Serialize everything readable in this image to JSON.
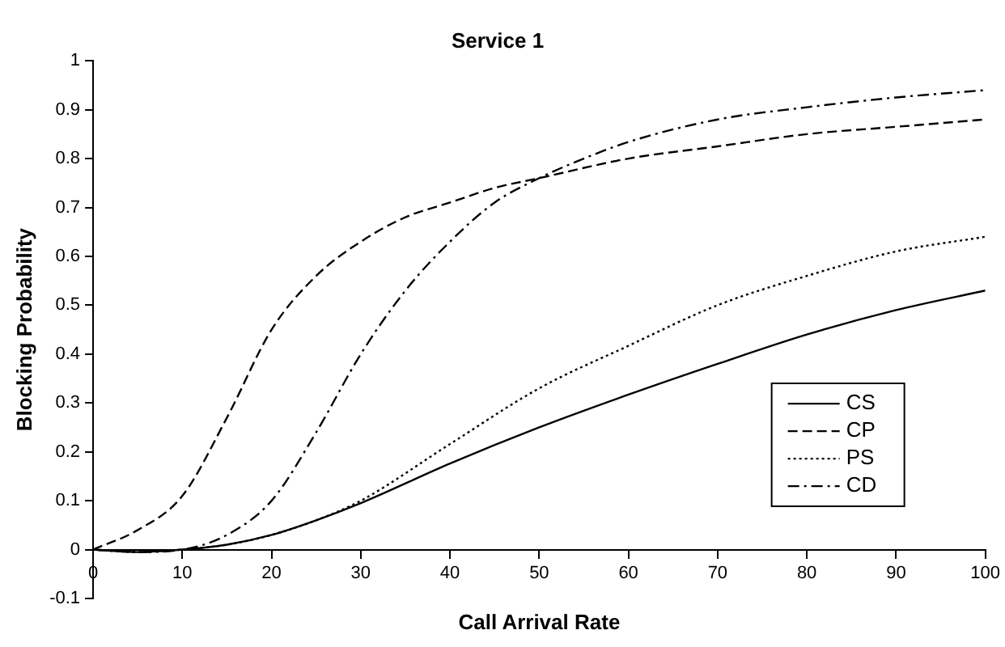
{
  "chart_data": {
    "type": "line",
    "title": "Service 1",
    "xlabel": "Call Arrival Rate",
    "ylabel": "Blocking Probability",
    "xlim": [
      0,
      100
    ],
    "xticks": [
      0,
      10,
      20,
      30,
      40,
      50,
      60,
      70,
      80,
      90,
      100
    ],
    "ylim": [
      -0.1,
      1
    ],
    "yticks": [
      -0.1,
      0,
      0.1,
      0.2,
      0.3,
      0.4,
      0.5,
      0.6,
      0.7,
      0.8,
      0.9,
      1
    ],
    "grid": false,
    "legend": "right",
    "marker": "none",
    "series": [
      {
        "name": "CS",
        "color": "#000000",
        "line_style": "solid",
        "x": [
          0,
          5,
          10,
          15,
          20,
          25,
          30,
          40,
          50,
          60,
          70,
          80,
          90,
          100
        ],
        "values": [
          0,
          -0.005,
          0,
          0.01,
          0.03,
          0.06,
          0.095,
          0.176,
          0.25,
          0.317,
          0.38,
          0.44,
          0.49,
          0.53
        ]
      },
      {
        "name": "CP",
        "color": "#000000",
        "line_style": "dashed",
        "x": [
          0,
          5,
          10,
          15,
          20,
          25,
          30,
          35,
          40,
          45,
          50,
          60,
          70,
          80,
          90,
          100
        ],
        "values": [
          0,
          0.04,
          0.11,
          0.27,
          0.45,
          0.56,
          0.63,
          0.68,
          0.71,
          0.74,
          0.76,
          0.8,
          0.825,
          0.85,
          0.865,
          0.88
        ]
      },
      {
        "name": "PS",
        "color": "#000000",
        "line_style": "dotted",
        "x": [
          0,
          5,
          10,
          15,
          20,
          25,
          30,
          40,
          50,
          60,
          70,
          80,
          90,
          100
        ],
        "values": [
          0,
          -0.005,
          0,
          0.01,
          0.03,
          0.06,
          0.1,
          0.216,
          0.33,
          0.417,
          0.5,
          0.56,
          0.61,
          0.64
        ]
      },
      {
        "name": "CD",
        "color": "#000000",
        "line_style": "dashdot",
        "x": [
          0,
          5,
          10,
          15,
          20,
          25,
          30,
          35,
          40,
          45,
          50,
          55,
          60,
          70,
          80,
          90,
          100
        ],
        "values": [
          0,
          -0.005,
          0,
          0.03,
          0.1,
          0.24,
          0.4,
          0.53,
          0.63,
          0.71,
          0.76,
          0.8,
          0.834,
          0.88,
          0.905,
          0.925,
          0.94
        ]
      }
    ]
  }
}
